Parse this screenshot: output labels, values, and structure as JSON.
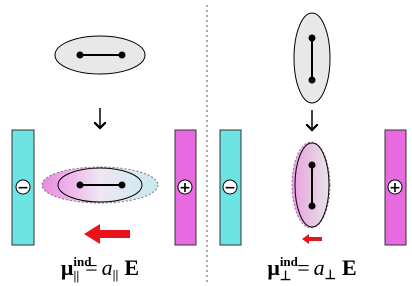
{
  "panels": [
    {
      "minus": "−",
      "plus": "+",
      "equation": {
        "mu": "μ",
        "sup": "ind",
        "sub": "||",
        "eq": "=",
        "a": "a",
        "asub": "||",
        "field": "E"
      }
    },
    {
      "minus": "−",
      "plus": "+",
      "equation": {
        "mu": "μ",
        "sup": "ind",
        "sub": "⊥",
        "eq": "=",
        "a": "a",
        "asub": "⊥",
        "field": "E"
      }
    }
  ]
}
